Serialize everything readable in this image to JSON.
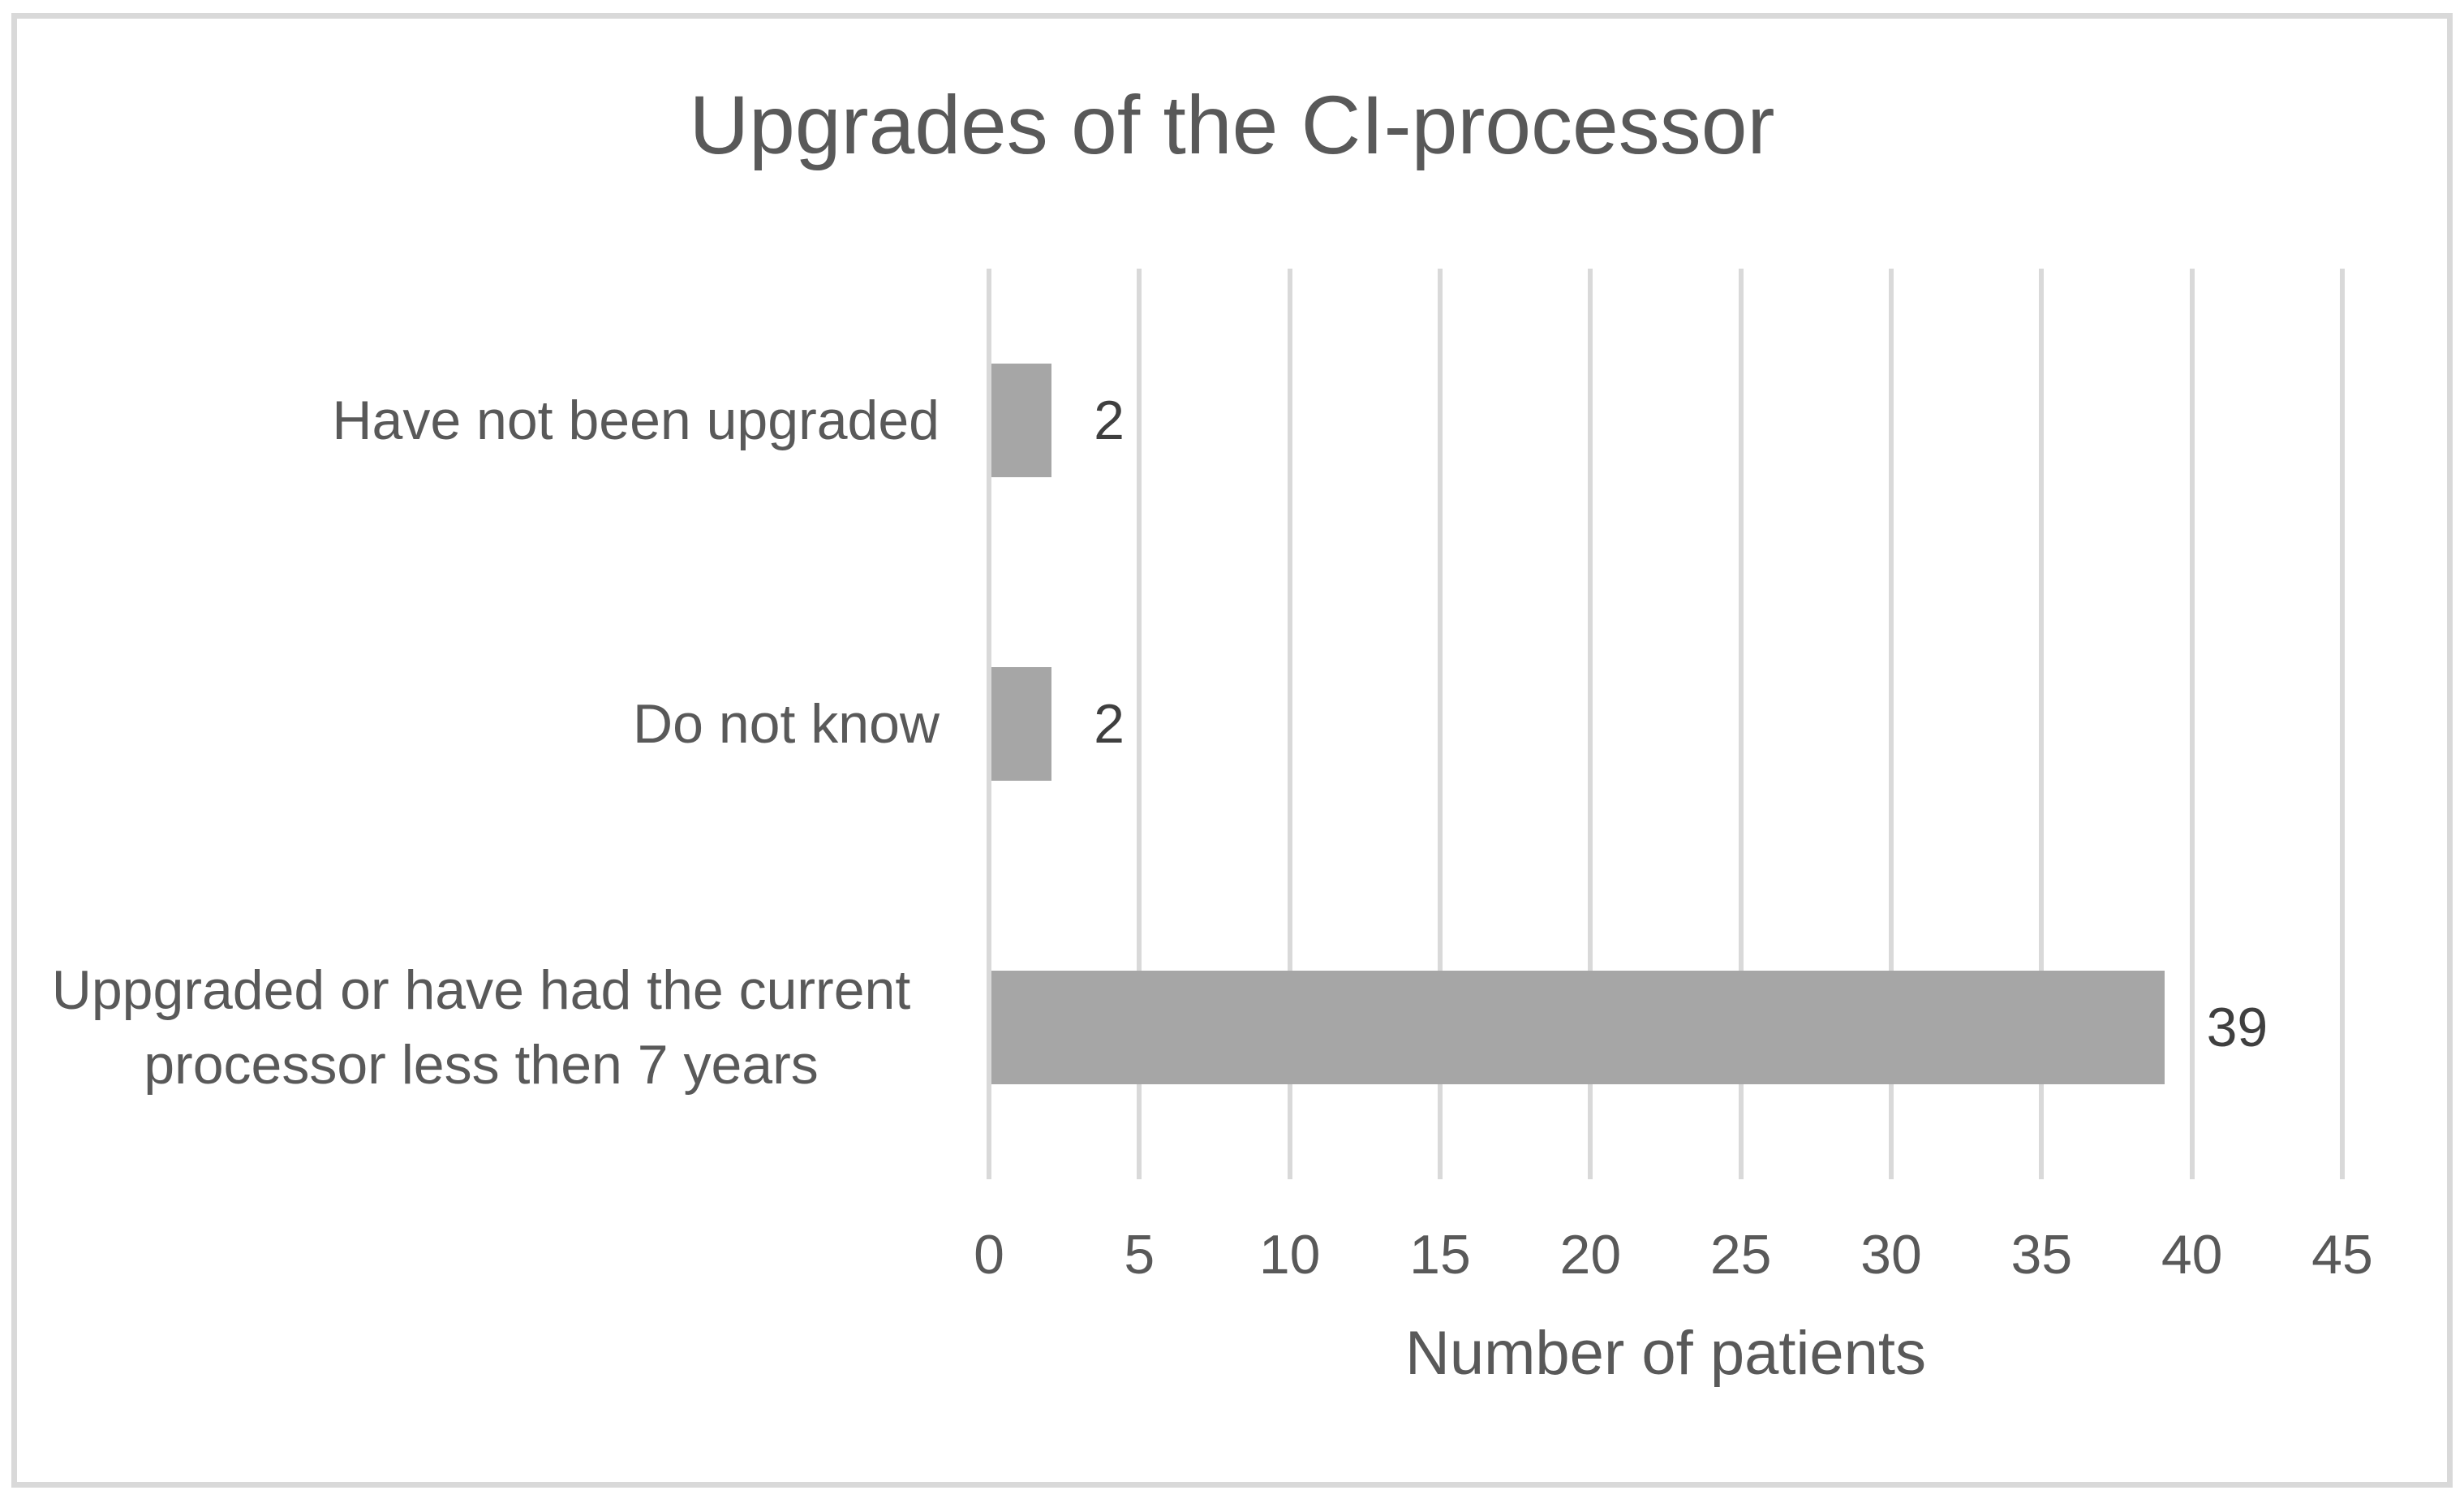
{
  "chart_data": {
    "type": "bar",
    "orientation": "horizontal",
    "title": "Upgrades of the CI-processor",
    "xlabel": "Number of patients",
    "ylabel": "",
    "categories": [
      "Have not been upgraded",
      "Do not know",
      "Uppgraded or have had the current processor less then 7 years"
    ],
    "values": [
      2,
      2,
      39
    ],
    "data_labels": [
      "2",
      "2",
      "39"
    ],
    "xlim": [
      0,
      45
    ],
    "xticks": [
      0,
      5,
      10,
      15,
      20,
      25,
      30,
      35,
      40,
      45
    ],
    "grid": "vertical-gridlines-only",
    "legend": false,
    "colors": {
      "bar": "#A6A6A6",
      "gridline": "#D9D9D9",
      "frame_border": "#D9D9D9",
      "title_text": "#595959",
      "category_text": "#595959",
      "tick_text": "#595959",
      "axis_title_text": "#595959",
      "data_label_text": "#3F3F3F"
    }
  }
}
